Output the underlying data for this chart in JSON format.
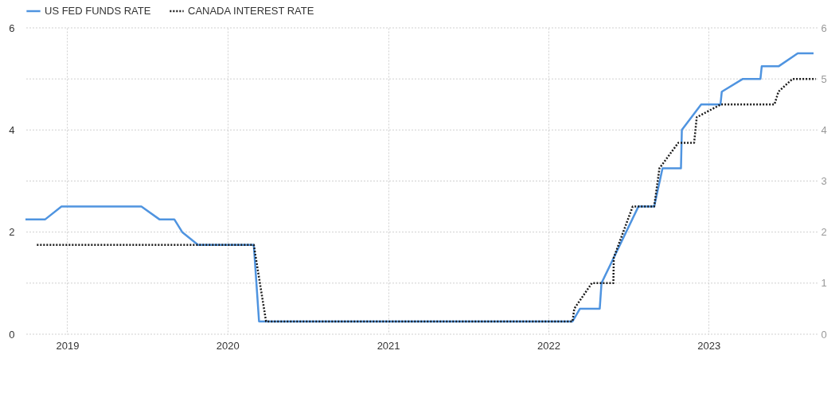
{
  "chart_data": {
    "type": "line",
    "series": [
      {
        "name": "US FED FUNDS RATE",
        "color": "#4f94e0",
        "line_style": "solid",
        "x": [
          "2018-09-28",
          "2018-11-12",
          "2018-12-19",
          "2019-06-19",
          "2019-07-30",
          "2019-09-02",
          "2019-09-20",
          "2019-10-26",
          "2020-03-01",
          "2020-03-13",
          "2022-02-25",
          "2022-03-14",
          "2022-04-28",
          "2022-05-02",
          "2022-07-25",
          "2022-08-30",
          "2022-09-18",
          "2022-10-30",
          "2022-11-01",
          "2022-12-15",
          "2023-01-28",
          "2023-01-31",
          "2023-03-20",
          "2023-04-29",
          "2023-05-02",
          "2023-06-10",
          "2023-07-23",
          "2023-08-28"
        ],
        "values": [
          2.25,
          2.25,
          2.5,
          2.5,
          2.25,
          2.25,
          2.0,
          1.75,
          1.75,
          0.25,
          0.25,
          0.5,
          0.5,
          1.0,
          2.5,
          2.5,
          3.25,
          3.25,
          4.0,
          4.5,
          4.5,
          4.75,
          5.0,
          5.0,
          5.25,
          5.25,
          5.5,
          5.5
        ]
      },
      {
        "name": "CANADA INTEREST RATE",
        "color": "#1a1a1a",
        "line_style": "dotted",
        "x": [
          "2018-10-24",
          "2020-03-01",
          "2020-03-29",
          "2022-02-25",
          "2022-03-01",
          "2022-04-10",
          "2022-05-29",
          "2022-05-30",
          "2022-07-12",
          "2022-08-30",
          "2022-09-11",
          "2022-10-24",
          "2022-11-29",
          "2022-12-05",
          "2023-01-29",
          "2023-05-31",
          "2023-06-09",
          "2023-07-11",
          "2023-09-02"
        ],
        "values": [
          1.75,
          1.75,
          0.25,
          0.25,
          0.5,
          1.0,
          1.0,
          1.5,
          2.5,
          2.5,
          3.25,
          3.75,
          3.75,
          4.25,
          4.5,
          4.5,
          4.75,
          5.0,
          5.0
        ]
      }
    ],
    "xlim": [
      "2018-09-28",
      "2023-09-06"
    ],
    "xticks": [
      "2019",
      "2020",
      "2021",
      "2022",
      "2023"
    ],
    "ylim": [
      0,
      6
    ],
    "yticks": [
      0,
      2,
      4,
      6
    ],
    "y2lim": [
      0,
      6
    ],
    "y2ticks": [
      0,
      1,
      2,
      3,
      4,
      5,
      6
    ],
    "grid": true,
    "legend": "top left"
  }
}
